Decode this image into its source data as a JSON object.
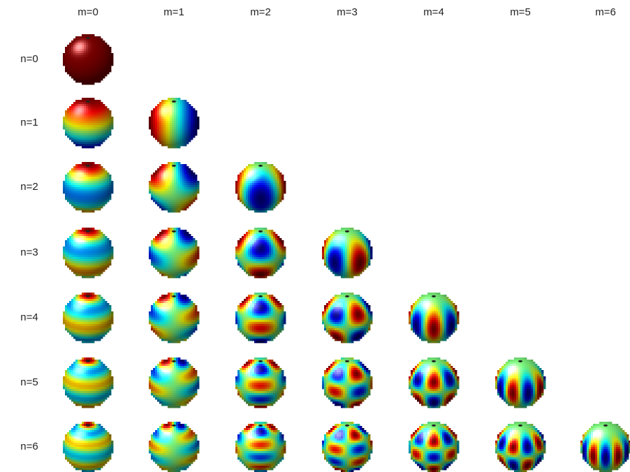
{
  "columns": [
    "m=0",
    "m=1",
    "m=2",
    "m=3",
    "m=4",
    "m=5",
    "m=6"
  ],
  "rows": [
    "n=0",
    "n=1",
    "n=2",
    "n=3",
    "n=4",
    "n=5",
    "n=6"
  ]
}
